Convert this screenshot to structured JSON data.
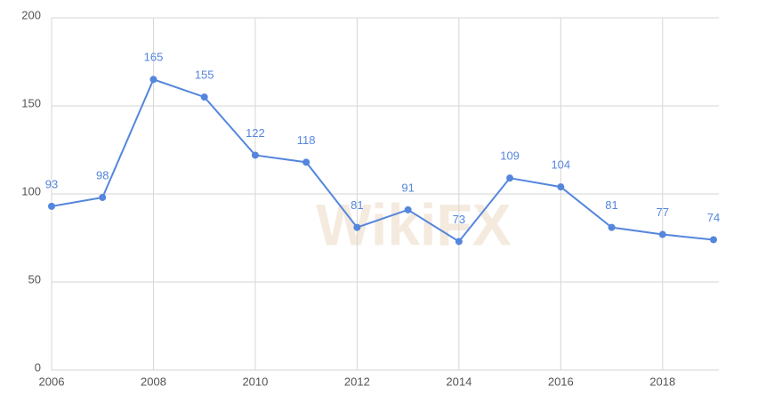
{
  "chart_data": {
    "type": "line",
    "watermark": "WikiFX",
    "x": [
      2006,
      2007,
      2008,
      2009,
      2010,
      2011,
      2012,
      2013,
      2014,
      2015,
      2016,
      2017,
      2018,
      2019
    ],
    "series": [
      {
        "name": "Series",
        "color": "#5586dd",
        "values": [
          93,
          98,
          165,
          155,
          122,
          118,
          81,
          91,
          73,
          109,
          104,
          81,
          77,
          74
        ]
      }
    ],
    "xlim": [
      2006,
      2019
    ],
    "xticks": [
      2006,
      2008,
      2010,
      2012,
      2014,
      2016,
      2018
    ],
    "ylim": [
      0,
      200
    ],
    "yticks": [
      0,
      50,
      100,
      150,
      200
    ],
    "grid": true
  }
}
